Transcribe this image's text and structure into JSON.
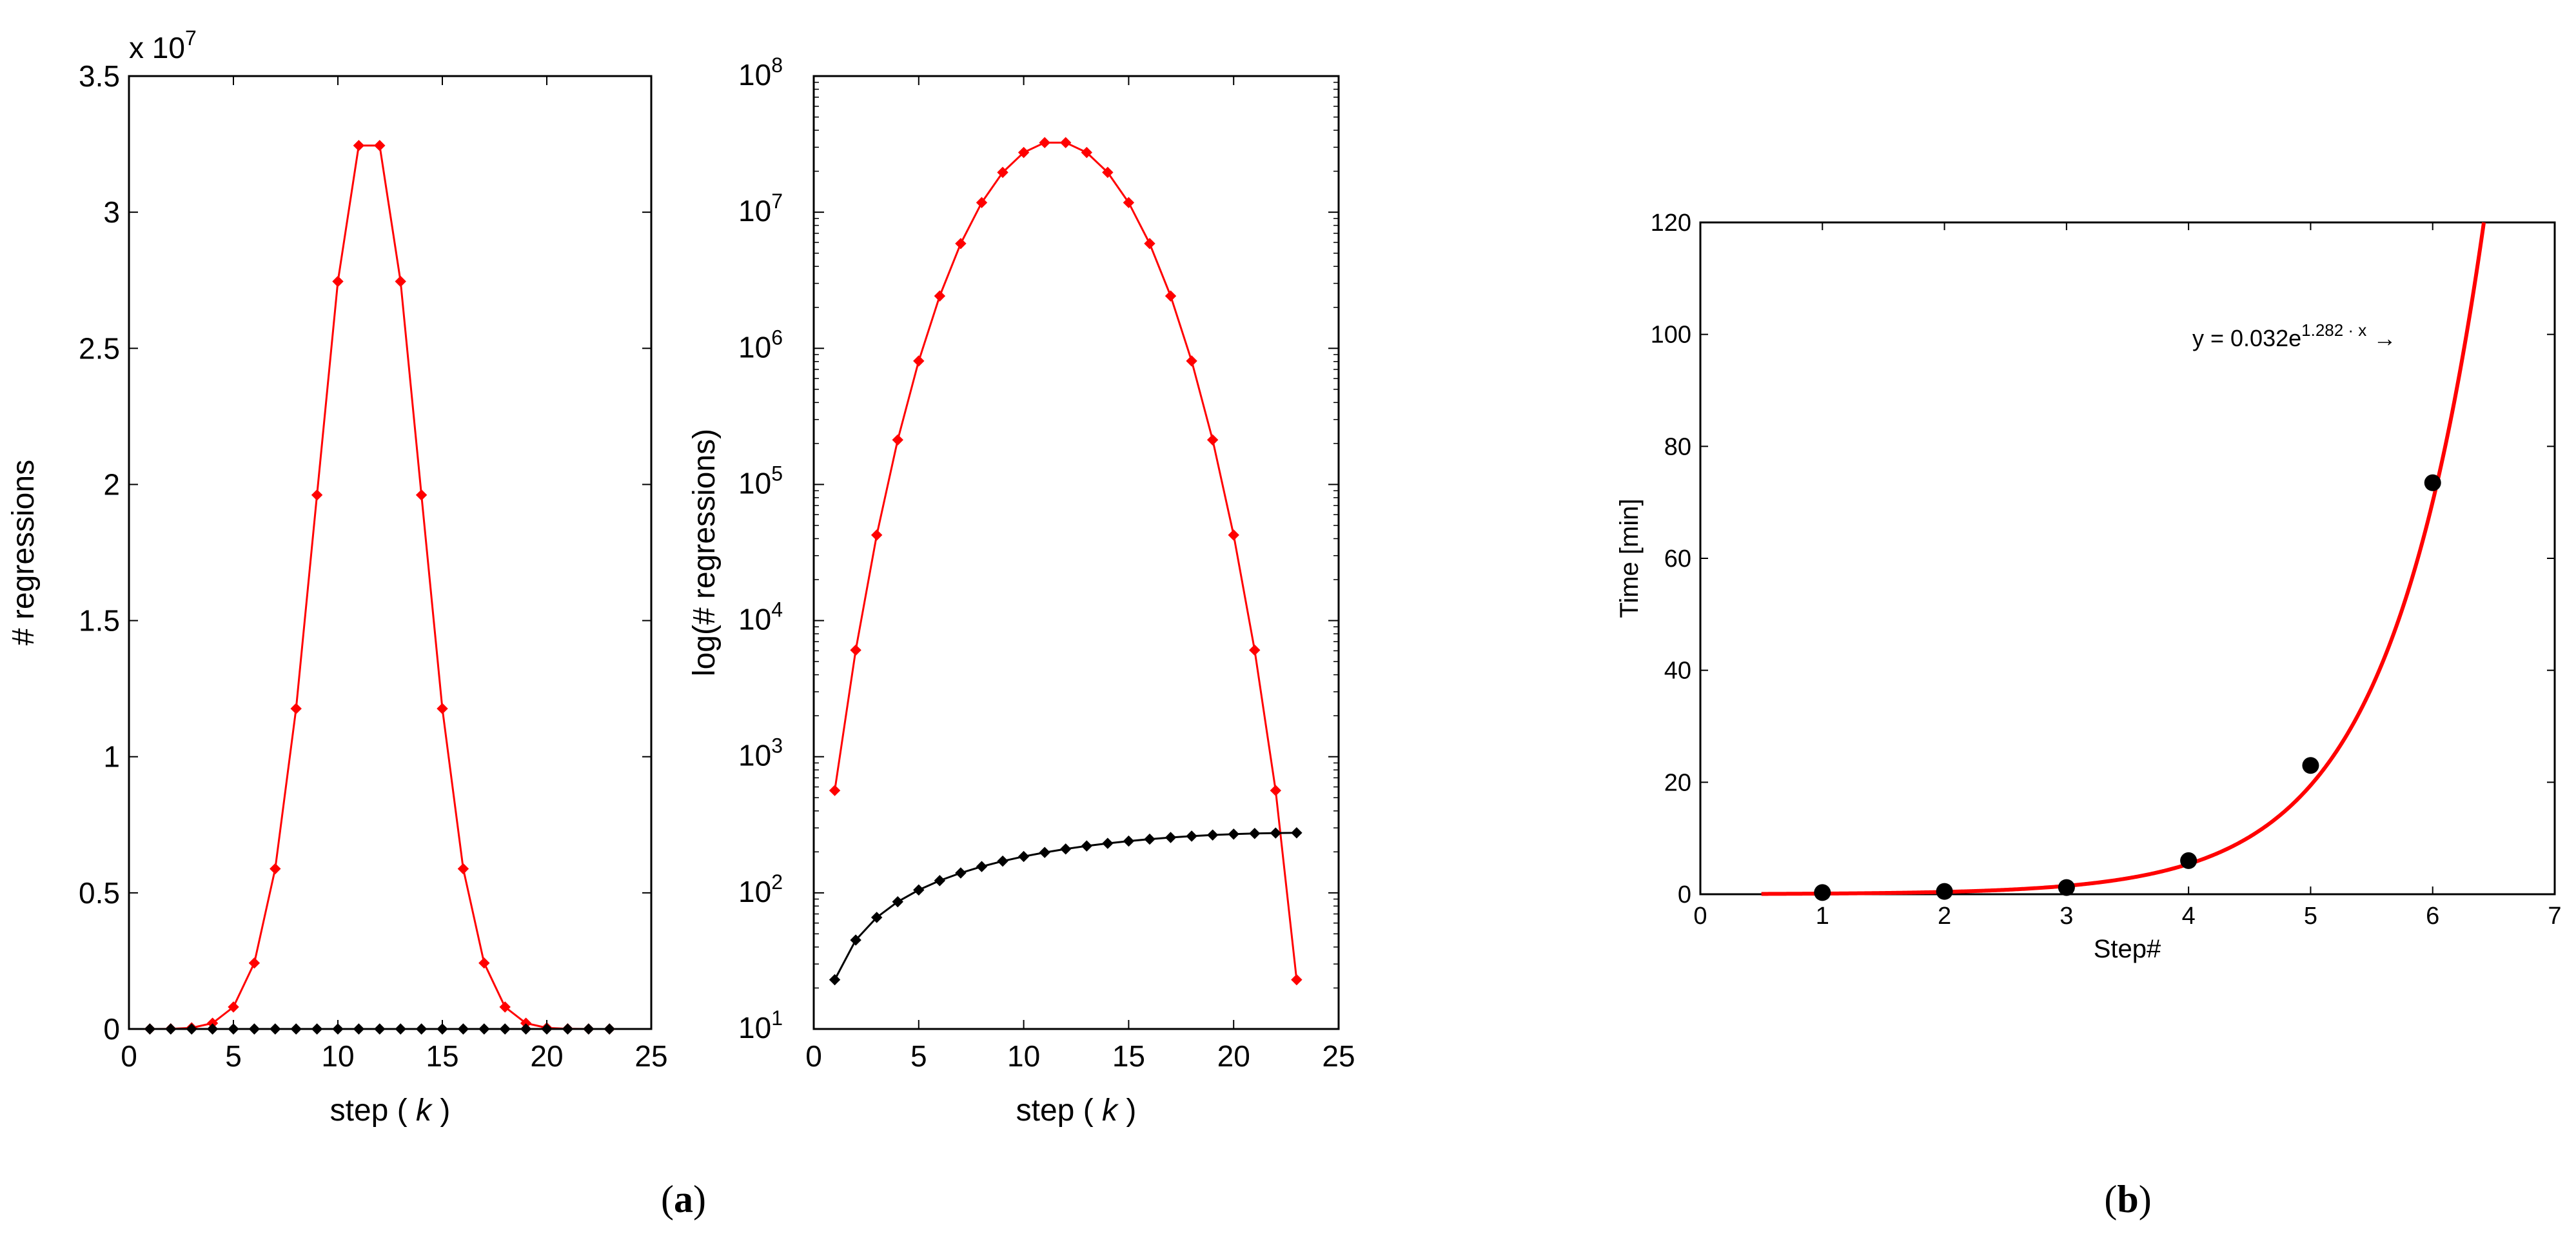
{
  "figure": {
    "label_a_letter": "a",
    "label_b_letter": "b",
    "paren_open": "(",
    "paren_close": ")"
  },
  "chart_data": [
    {
      "id": "a-linear",
      "type": "line",
      "title": "",
      "xlabel_prefix": "step (",
      "xlabel_var": "k",
      "xlabel_suffix": ")",
      "ylabel": "# regressions",
      "y_exponent_text": "x 10",
      "y_exponent_power": "7",
      "xlim": [
        0,
        25
      ],
      "ylim": [
        0,
        3.5
      ],
      "xticks": [
        0,
        5,
        10,
        15,
        20,
        25
      ],
      "yticks": [
        0,
        0.5,
        1,
        1.5,
        2,
        2.5,
        3,
        3.5
      ],
      "ytick_labels": [
        "0",
        "0.5",
        "1",
        "1.5",
        "2",
        "2.5",
        "3",
        "3.5"
      ],
      "scale_factor": 10000000,
      "x": [
        1,
        2,
        3,
        4,
        5,
        6,
        7,
        8,
        9,
        10,
        11,
        12,
        13,
        14,
        15,
        16,
        17,
        18,
        19,
        20,
        21,
        22,
        23
      ],
      "series": [
        {
          "name": "red",
          "color": "#ff0000",
          "values": [
            565,
            6072,
            42504,
            212520,
            807576,
            2422728,
            5883768,
            11767536,
            19612560,
            27457584,
            32449872,
            32449872,
            27457584,
            19612560,
            11767536,
            5883768,
            2422728,
            807576,
            212520,
            42504,
            6072,
            565,
            23
          ]
        },
        {
          "name": "black",
          "color": "#000000",
          "values": [
            23,
            45,
            66,
            86,
            105,
            123,
            140,
            156,
            171,
            185,
            198,
            210,
            221,
            231,
            240,
            248,
            255,
            261,
            266,
            270,
            273,
            275,
            276
          ]
        }
      ]
    },
    {
      "id": "a-log",
      "type": "line",
      "title": "",
      "xlabel_prefix": "step (",
      "xlabel_var": "k",
      "xlabel_suffix": ")",
      "ylabel": "log(# regressions)",
      "yscale": "log",
      "xlim": [
        0,
        25
      ],
      "ylim": [
        10,
        100000000
      ],
      "xticks": [
        0,
        5,
        10,
        15,
        20,
        25
      ],
      "yticks_base": "10",
      "yticks_exponents": [
        "1",
        "2",
        "3",
        "4",
        "5",
        "6",
        "7",
        "8"
      ],
      "x": [
        1,
        2,
        3,
        4,
        5,
        6,
        7,
        8,
        9,
        10,
        11,
        12,
        13,
        14,
        15,
        16,
        17,
        18,
        19,
        20,
        21,
        22,
        23
      ],
      "series": [
        {
          "name": "red",
          "color": "#ff0000",
          "values": [
            565,
            6072,
            42504,
            212520,
            807576,
            2422728,
            5883768,
            11767536,
            19612560,
            27457584,
            32449872,
            32449872,
            27457584,
            19612560,
            11767536,
            5883768,
            2422728,
            807576,
            212520,
            42504,
            6072,
            565,
            23
          ]
        },
        {
          "name": "black",
          "color": "#000000",
          "values": [
            23,
            45,
            66,
            86,
            105,
            123,
            140,
            156,
            171,
            185,
            198,
            210,
            221,
            231,
            240,
            248,
            255,
            261,
            266,
            270,
            273,
            275,
            276
          ]
        }
      ]
    },
    {
      "id": "b",
      "type": "scatter",
      "title": "",
      "xlabel": "Step#",
      "ylabel": "Time [min]",
      "xlim": [
        0,
        7
      ],
      "ylim": [
        0,
        120
      ],
      "xticks": [
        0,
        1,
        2,
        3,
        4,
        5,
        6,
        7
      ],
      "yticks": [
        0,
        20,
        40,
        60,
        80,
        100,
        120
      ],
      "points": {
        "x": [
          1,
          2,
          3,
          4,
          5,
          6
        ],
        "y": [
          0.3,
          0.5,
          1.2,
          6,
          23,
          73.5
        ]
      },
      "fit": {
        "a": 0.032,
        "b": 1.282,
        "x_start": 0.5,
        "color": "#ff0000"
      },
      "annotation_base": "y = 0.032e",
      "annotation_exponent": "1.282 · x",
      "annotation_arrow": "→"
    }
  ]
}
